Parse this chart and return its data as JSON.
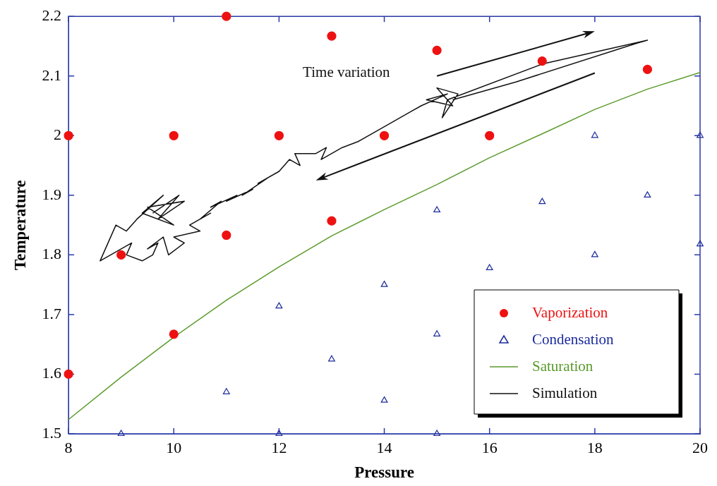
{
  "chart_data": {
    "type": "scatter",
    "xlabel": "Pressure",
    "ylabel": "Temperature",
    "xlim": [
      8,
      20
    ],
    "ylim": [
      1.5,
      2.2
    ],
    "xticks": [
      8,
      10,
      12,
      14,
      16,
      18,
      20
    ],
    "yticks": [
      1.5,
      1.6,
      1.7,
      1.8,
      1.9,
      2,
      2.1,
      2.2
    ],
    "grid": false,
    "legend": "bottom right",
    "annotations": [
      "Time variation"
    ],
    "series": [
      {
        "name": "Vaporization",
        "type": "scatter",
        "marker": "circle",
        "color": "#ee1111",
        "x": [
          8,
          8,
          9,
          10,
          10,
          11,
          11,
          12,
          13,
          13,
          14,
          15,
          16,
          17,
          19
        ],
        "values": [
          2.0,
          1.6,
          1.8,
          2.0,
          1.667,
          2.2,
          1.833,
          2.0,
          2.167,
          1.857,
          2.0,
          2.143,
          2.0,
          2.125,
          2.111
        ]
      },
      {
        "name": "Condensation",
        "type": "scatter",
        "marker": "triangle",
        "color": "#1a2a9a",
        "x": [
          9,
          11,
          12,
          12,
          13,
          14,
          14,
          15,
          15,
          15,
          16,
          17,
          18,
          18,
          19,
          20,
          20
        ],
        "values": [
          1.5,
          1.57,
          1.5,
          1.714,
          1.625,
          1.556,
          1.75,
          1.5,
          1.667,
          1.875,
          1.778,
          1.889,
          1.8,
          2.0,
          1.9,
          2.0,
          1.818
        ]
      },
      {
        "name": "Saturation",
        "type": "line",
        "marker": "none",
        "color": "#5a9a2a",
        "x": [
          8,
          9,
          10,
          11,
          12,
          13,
          14,
          15,
          16,
          17,
          18,
          19,
          20
        ],
        "values": [
          1.524,
          1.595,
          1.662,
          1.724,
          1.78,
          1.832,
          1.876,
          1.918,
          1.963,
          2.003,
          2.044,
          2.078,
          2.106
        ]
      },
      {
        "name": "Simulation",
        "type": "line",
        "marker": "none",
        "color": "#111111",
        "x": [
          9.6,
          10.1,
          9.7,
          10.2,
          9.5,
          10.0,
          9.4,
          9.8,
          9.3,
          9.1,
          8.9,
          8.6,
          9.0,
          9.2,
          9.1,
          9.4,
          9.6,
          9.7,
          9.5,
          9.8,
          9.9,
          10.2,
          10.0,
          10.5,
          10.3,
          10.7,
          10.5,
          10.9,
          10.7,
          11.2,
          11.0,
          11.5,
          11.3,
          11.8,
          11.6,
          12.0,
          12.2,
          12.4,
          12.3,
          12.7,
          12.9,
          12.8,
          13.2,
          13.5,
          13.9,
          14.5,
          14.7,
          15.2,
          14.8,
          15.3,
          15.0,
          15.4,
          15.1,
          15.2,
          17.0,
          19.0,
          18.8,
          16.5,
          15.3
        ],
        "values": [
          1.87,
          1.9,
          1.86,
          1.89,
          1.88,
          1.85,
          1.87,
          1.9,
          1.86,
          1.84,
          1.85,
          1.79,
          1.81,
          1.82,
          1.8,
          1.79,
          1.8,
          1.82,
          1.81,
          1.83,
          1.8,
          1.82,
          1.83,
          1.84,
          1.85,
          1.87,
          1.86,
          1.89,
          1.88,
          1.9,
          1.89,
          1.91,
          1.9,
          1.93,
          1.92,
          1.94,
          1.96,
          1.95,
          1.97,
          1.97,
          1.98,
          1.96,
          1.98,
          1.99,
          2.01,
          2.04,
          2.05,
          2.07,
          2.06,
          2.05,
          2.08,
          2.07,
          2.03,
          2.06,
          2.12,
          2.16,
          2.155,
          2.09,
          2.06
        ]
      }
    ]
  }
}
